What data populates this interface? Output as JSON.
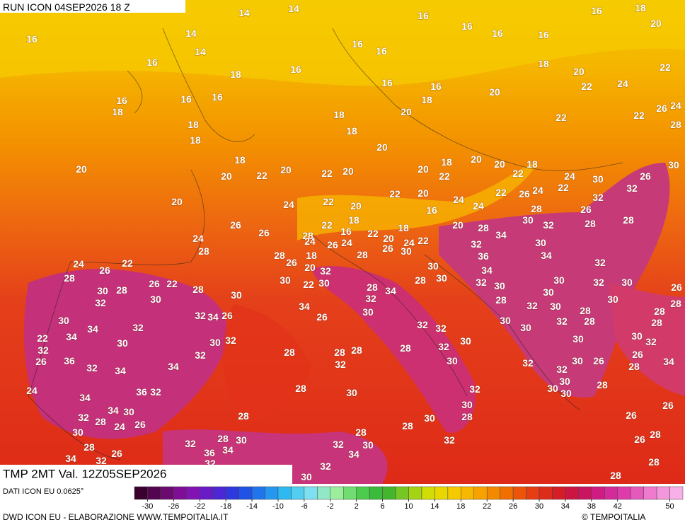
{
  "header": {
    "run": "RUN ICON 04SEP2026 18 Z",
    "product": "TMP 2MT Val. 12Z05SEP2026"
  },
  "map": {
    "labels": [
      14,
      14,
      16,
      16,
      18,
      16,
      16,
      14,
      16,
      16,
      20,
      16,
      16,
      14,
      16,
      18,
      20,
      22,
      16,
      18,
      16,
      16,
      22,
      24,
      16,
      16,
      16,
      18,
      20,
      26,
      24,
      18,
      20,
      22,
      22,
      28,
      18,
      18,
      18,
      18,
      20,
      18,
      20,
      18,
      22,
      18,
      30,
      20,
      20,
      22,
      20,
      22,
      20,
      20,
      22,
      20,
      24,
      30,
      26,
      22,
      32,
      24,
      26,
      22,
      22,
      20,
      32,
      24,
      22,
      20,
      24,
      20,
      24,
      16,
      28,
      26,
      18,
      28,
      26,
      26,
      22,
      16,
      22,
      20,
      18,
      20,
      28,
      30,
      32,
      28,
      24,
      34,
      24,
      22,
      26,
      24,
      28,
      30,
      32,
      28,
      28,
      28,
      26,
      30,
      18,
      24,
      36,
      34,
      22,
      24,
      26,
      26,
      20,
      32,
      34,
      32,
      28,
      30,
      22,
      30,
      30,
      30,
      32,
      30,
      30,
      32,
      30,
      26,
      30,
      28,
      26,
      22,
      28,
      30,
      28,
      34,
      32,
      28,
      32,
      30,
      34,
      28,
      32,
      30,
      28,
      30,
      28,
      28,
      30,
      32,
      34,
      26,
      26,
      30,
      32,
      30,
      30,
      28,
      30,
      32,
      34,
      34,
      30,
      30,
      32,
      32,
      32,
      28,
      22,
      30,
      32,
      32,
      28,
      28,
      28,
      28,
      32,
      30,
      30,
      26,
      36,
      32,
      34,
      34,
      32,
      32,
      30,
      32,
      32,
      30,
      26,
      28,
      34,
      26,
      24,
      34,
      36,
      32,
      28,
      30,
      32,
      30,
      30,
      30,
      28,
      30,
      28,
      32,
      34,
      30,
      28,
      24,
      26,
      30,
      28,
      28,
      30,
      32,
      26,
      26,
      28,
      26,
      28,
      32,
      28,
      30,
      28,
      32,
      30,
      34,
      26,
      32,
      36,
      34,
      32,
      34,
      32,
      30,
      28,
      28
    ]
  },
  "legend": {
    "source": "DATI ICON EU 0.0625°",
    "ticks": [
      -30,
      -26,
      -22,
      -18,
      -14,
      -10,
      -6,
      -2,
      2,
      6,
      10,
      14,
      18,
      22,
      26,
      30,
      34,
      38,
      42,
      50
    ]
  },
  "footer": {
    "credit": "DWD ICON EU - ELABORAZIONE WWW.TEMPOITALIA.IT",
    "copyright": "© TEMPOITALIA"
  }
}
